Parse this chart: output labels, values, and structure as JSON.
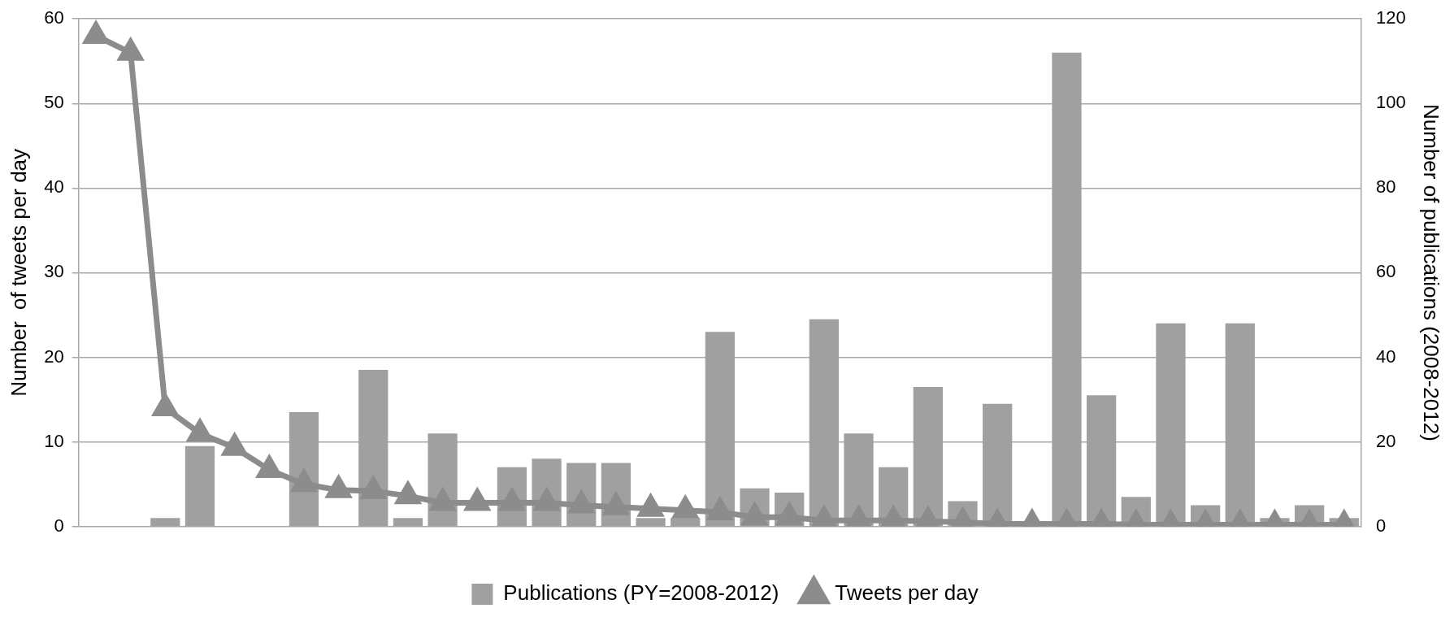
{
  "chart_data": {
    "type": "bar",
    "ylabel": "Number  of tweets per day",
    "y2label": "Number of publications (2008-2012)",
    "categories": [
      null,
      null,
      null,
      null,
      null,
      null,
      null,
      null,
      null,
      null,
      null,
      null,
      null,
      null,
      null,
      null,
      null,
      null,
      null,
      null,
      null,
      null,
      null,
      null,
      null,
      null,
      null,
      null,
      null,
      null,
      null,
      null,
      null,
      null,
      null,
      null,
      null
    ],
    "series": [
      {
        "name": "Publications (PY=2008-2012)",
        "axis": "y2",
        "color": "#a0a0a0",
        "values": [
          0,
          0,
          2,
          19,
          0,
          0,
          27,
          0,
          37,
          2,
          22,
          0,
          14,
          16,
          15,
          15,
          2,
          2,
          46,
          9,
          8,
          49,
          22,
          14,
          33,
          6,
          29,
          0,
          112,
          31,
          7,
          48,
          5,
          48,
          2,
          5,
          2
        ]
      },
      {
        "name": "Tweets per day",
        "type": "line",
        "axis": "y",
        "color": "#8c8c8c",
        "marker": "triangle",
        "values": [
          58,
          56,
          14,
          11,
          9.3,
          6.7,
          5,
          4.3,
          4.2,
          3.6,
          2.8,
          2.8,
          2.8,
          2.8,
          2.5,
          2.3,
          2.1,
          1.9,
          1.7,
          1.1,
          1.1,
          0.7,
          0.7,
          0.7,
          0.6,
          0.5,
          0.3,
          0.3,
          0.3,
          0.3,
          0.2,
          0.2,
          0.2,
          0.2,
          0.2,
          0.2,
          0.2
        ]
      }
    ],
    "ylim": [
      0,
      60
    ],
    "yticks": [
      0,
      10,
      20,
      30,
      40,
      50,
      60
    ],
    "y2lim": [
      0,
      120
    ],
    "y2ticks": [
      0,
      20,
      40,
      60,
      80,
      100,
      120
    ],
    "grid": "y",
    "legend": "bottom"
  }
}
